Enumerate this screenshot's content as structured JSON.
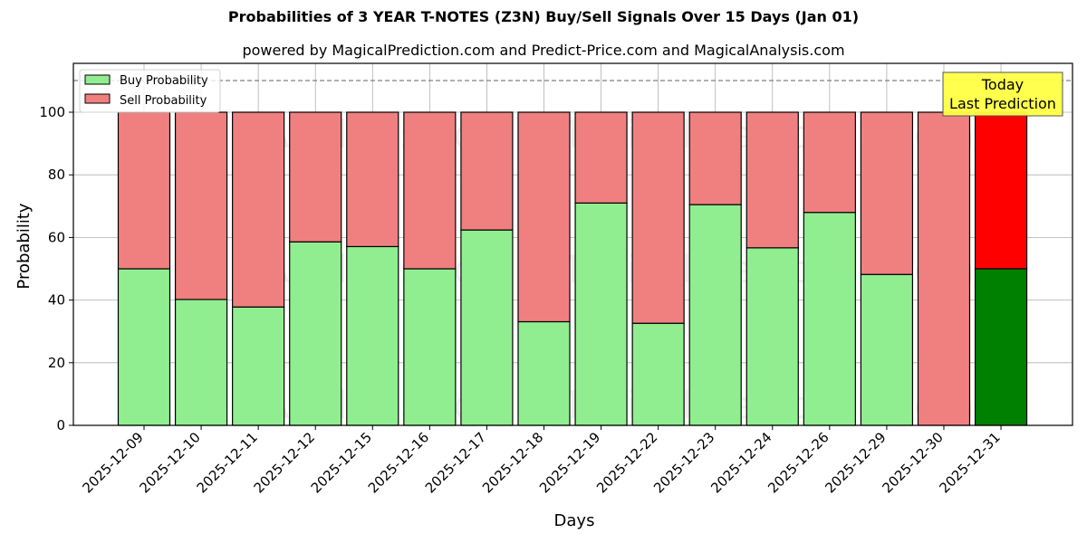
{
  "header": {
    "title": "Probabilities of 3 YEAR T-NOTES (Z3N) Buy/Sell Signals Over 15 Days (Jan 01)",
    "subtitle": "powered by MagicalPrediction.com and Predict-Price.com and MagicalAnalysis.com"
  },
  "legend": {
    "buy_label": "Buy Probability",
    "sell_label": "Sell Probability"
  },
  "annotation": {
    "line1": "Today",
    "line2": "Last Prediction"
  },
  "watermarks": [
    "MagicalAnalysis.com",
    "MagicalPrediction.com"
  ],
  "colors": {
    "buy": "#90ee90",
    "sell": "#f08080",
    "today_buy": "#008000",
    "today_sell": "#ff0000",
    "annotation_bg": "#ffff44"
  },
  "chart_data": {
    "type": "bar",
    "stacked": true,
    "title": "Probabilities of 3 YEAR T-NOTES (Z3N) Buy/Sell Signals Over 15 Days (Jan 01)",
    "subtitle": "powered by MagicalPrediction.com and Predict-Price.com and MagicalAnalysis.com",
    "xlabel": "Days",
    "ylabel": "Probability",
    "ylim": [
      0,
      115
    ],
    "yticks": [
      0,
      20,
      40,
      60,
      80,
      100
    ],
    "grid": true,
    "legend_position": "upper left",
    "reference_line": {
      "y": 110,
      "style": "dashed"
    },
    "categories": [
      "2025-12-09",
      "2025-12-10",
      "2025-12-11",
      "2025-12-12",
      "2025-12-15",
      "2025-12-16",
      "2025-12-17",
      "2025-12-18",
      "2025-12-19",
      "2025-12-22",
      "2025-12-23",
      "2025-12-24",
      "2025-12-26",
      "2025-12-29",
      "2025-12-30",
      "2025-12-31"
    ],
    "series": [
      {
        "name": "Buy Probability",
        "values": [
          50.0,
          40.2,
          37.8,
          58.6,
          57.1,
          50.0,
          62.4,
          33.1,
          71.0,
          32.6,
          70.5,
          56.7,
          68.0,
          48.2,
          0.0,
          50.0
        ]
      },
      {
        "name": "Sell Probability",
        "values": [
          50.0,
          59.8,
          62.2,
          41.4,
          42.9,
          50.0,
          37.6,
          66.9,
          29.0,
          67.4,
          29.5,
          43.3,
          32.0,
          51.8,
          100.0,
          50.0
        ]
      }
    ],
    "annotations": [
      {
        "text": "Today\nLast Prediction",
        "category": "2025-12-31"
      }
    ]
  }
}
